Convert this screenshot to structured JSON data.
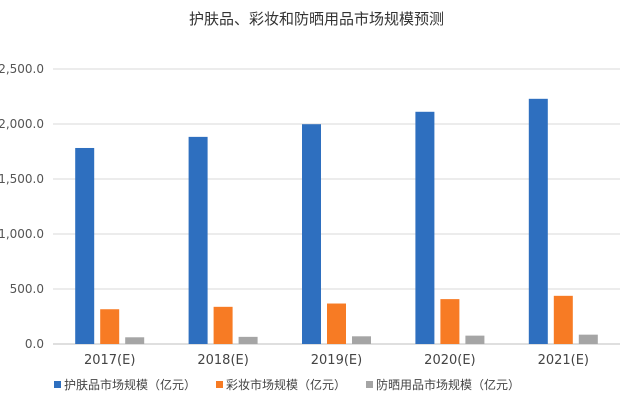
{
  "chart_data": {
    "type": "bar",
    "title": "护肤品、彩妆和防晒用品市场规模预测",
    "categories": [
      "2017(E)",
      "2018(E)",
      "2019(E)",
      "2020(E)",
      "2021(E)"
    ],
    "series": [
      {
        "name": "护肤品市场规模（亿元）",
        "color": "#2e6fbf",
        "values": [
          1782,
          1883,
          1998,
          2111,
          2229
        ]
      },
      {
        "name": "彩妆市场规模（亿元）",
        "color": "#f77b24",
        "values": [
          316,
          338,
          368,
          408,
          438
        ]
      },
      {
        "name": "防晒用品市场规模（亿元）",
        "color": "#a5a5a5",
        "values": [
          61,
          65,
          70,
          76,
          85
        ]
      }
    ],
    "ylim": [
      0,
      2500
    ],
    "yticks": [
      "0.0",
      "500.0",
      "1,000.0",
      "1,500.0",
      "2,000.0",
      "2,500.0"
    ],
    "grid": true,
    "legend_position": "bottom"
  }
}
